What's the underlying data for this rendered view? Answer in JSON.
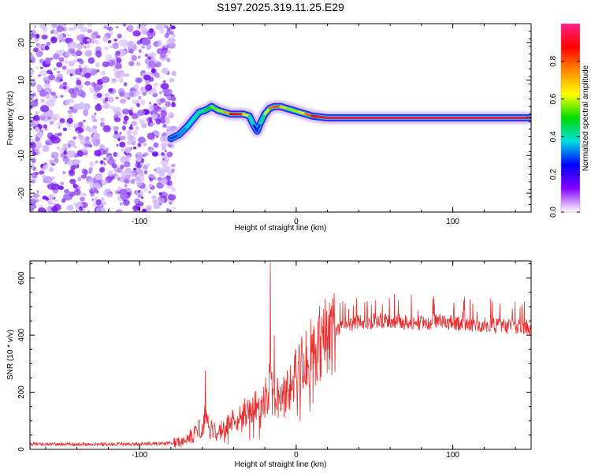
{
  "title": "S197.2025.319.11.25.E29",
  "chart_data": [
    {
      "type": "heatmap",
      "name": "spectrogram",
      "xlabel": "Height of straight line (km)",
      "ylabel": "Frequency (Hz)",
      "xlim": [
        -170,
        150
      ],
      "ylim": [
        -25,
        25
      ],
      "xticks": [
        "-100",
        "0",
        "100"
      ],
      "xtick_values": [
        -100,
        0,
        100
      ],
      "yticks": [
        "-20",
        "-10",
        "0",
        "10",
        "20"
      ],
      "ytick_values": [
        -20,
        -10,
        0,
        10,
        20
      ],
      "noise_region_x": [
        -170,
        -78
      ],
      "signal_ridge": {
        "x": [
          -80,
          -75,
          -70,
          -65,
          -62,
          -58,
          -54,
          -50,
          -46,
          -42,
          -38,
          -34,
          -30,
          -27,
          -25,
          -23,
          -20,
          -17,
          -14,
          -10,
          -6,
          -2,
          2,
          6,
          10,
          14,
          20,
          40,
          60,
          80,
          85,
          100,
          120,
          150
        ],
        "frequency_hz": [
          -5.5,
          -4.5,
          -2.5,
          0,
          1.5,
          2,
          3,
          2,
          1.5,
          1,
          1,
          1,
          0.5,
          -2,
          -3.5,
          -1.5,
          1,
          2.5,
          3,
          3,
          2.5,
          2,
          1.5,
          1,
          0.5,
          0.3,
          0,
          0,
          0,
          0,
          0,
          0,
          0,
          0
        ],
        "amplitude": [
          0.25,
          0.3,
          0.35,
          0.4,
          0.4,
          0.45,
          0.55,
          0.55,
          0.6,
          0.85,
          0.9,
          0.8,
          0.5,
          0.3,
          0.2,
          0.35,
          0.5,
          0.7,
          0.85,
          0.75,
          0.6,
          0.55,
          0.6,
          0.7,
          0.85,
          0.9,
          0.95,
          0.95,
          0.95,
          0.95,
          0.95,
          0.95,
          0.95,
          0.95
        ]
      }
    },
    {
      "type": "colorbar",
      "name": "amplitude-colorbar",
      "label": "Normalized spectral amplitude",
      "range": [
        0,
        1
      ],
      "ticks": [
        "0.0",
        "0.2",
        "0.4",
        "0.6",
        "0.8"
      ],
      "tick_values": [
        0,
        0.2,
        0.4,
        0.6,
        0.8
      ],
      "colors": [
        "#ffffff",
        "#8800ff",
        "#0000ff",
        "#00dddd",
        "#00dd00",
        "#ffff00",
        "#ff8800",
        "#ff0000",
        "#ff2288"
      ]
    },
    {
      "type": "line",
      "name": "snr-line",
      "xlabel": "Height of straight line (km)",
      "ylabel": "SNR (10 * v/v)",
      "xlim": [
        -170,
        150
      ],
      "ylim": [
        0,
        660
      ],
      "xticks": [
        "-100",
        "0",
        "100"
      ],
      "xtick_values": [
        -100,
        0,
        100
      ],
      "yticks": [
        "0",
        "200",
        "400",
        "600"
      ],
      "ytick_values": [
        0,
        200,
        400,
        600
      ],
      "color": "#e83030",
      "trend": {
        "x": [
          -170,
          -140,
          -110,
          -85,
          -75,
          -70,
          -65,
          -60,
          -58,
          -55,
          -50,
          -45,
          -40,
          -35,
          -30,
          -25,
          -20,
          -17,
          -16,
          -15,
          -10,
          -5,
          0,
          5,
          10,
          15,
          20,
          25,
          30,
          40,
          50,
          60,
          70,
          80,
          90,
          100,
          110,
          120,
          130,
          140,
          150
        ],
        "snr": [
          18,
          18,
          18,
          20,
          25,
          35,
          55,
          80,
          120,
          70,
          60,
          80,
          100,
          120,
          135,
          150,
          170,
          230,
          250,
          170,
          190,
          220,
          260,
          300,
          340,
          370,
          400,
          420,
          435,
          445,
          450,
          450,
          445,
          440,
          450,
          445,
          440,
          435,
          430,
          430,
          425
        ]
      },
      "spikes": [
        {
          "x": -58,
          "snr": 275
        },
        {
          "x": -16.5,
          "snr": 655
        },
        {
          "x": -14,
          "snr": 400
        }
      ]
    }
  ]
}
